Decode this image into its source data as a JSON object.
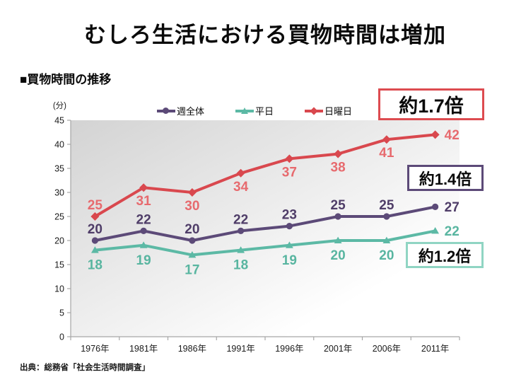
{
  "title": "むしろ生活における買物時間は増加",
  "section_header": "■買物時間の推移",
  "source": "出典：総務省「社会生活時間調査」",
  "annotations": [
    {
      "text": "約1.7倍",
      "color": "#dd4b50"
    },
    {
      "text": "約1.4倍",
      "color": "#5c4a78"
    },
    {
      "text": "約1.2倍",
      "color": "#90d5c3"
    }
  ],
  "chart_data": {
    "type": "line",
    "categories": [
      "1976年",
      "1981年",
      "1986年",
      "1991年",
      "1996年",
      "2001年",
      "2006年",
      "2011年"
    ],
    "series": [
      {
        "key": "week-total",
        "name": "週全体",
        "color": "#5c4a78",
        "label_color": "#4f3d68",
        "marker": "circle",
        "label_position": "above",
        "values": [
          20,
          22,
          20,
          22,
          23,
          25,
          25,
          27
        ]
      },
      {
        "key": "weekday",
        "name": "平日",
        "color": "#5cb9a5",
        "label_color": "#58b5a0",
        "marker": "triangle",
        "label_position": "below",
        "values": [
          18,
          19,
          17,
          18,
          19,
          20,
          20,
          22
        ]
      },
      {
        "key": "sunday",
        "name": "日曜日",
        "color": "#d9484e",
        "label_color": "#e76a6e",
        "marker": "diamond",
        "label_position": "below",
        "first_label_position": "above",
        "values": [
          25,
          31,
          30,
          34,
          37,
          38,
          41,
          42
        ]
      }
    ],
    "ylabel_unit": "(分)",
    "ylim": [
      0,
      45
    ],
    "ytick_step": 5,
    "xlabel": "",
    "grid": false,
    "legend_position": "top",
    "axis_color": "#a6a6a6",
    "tick_text_color": "#1a1a1a",
    "plot_bg_from": "#d3d3d3",
    "plot_bg_to": "#ffffff"
  }
}
